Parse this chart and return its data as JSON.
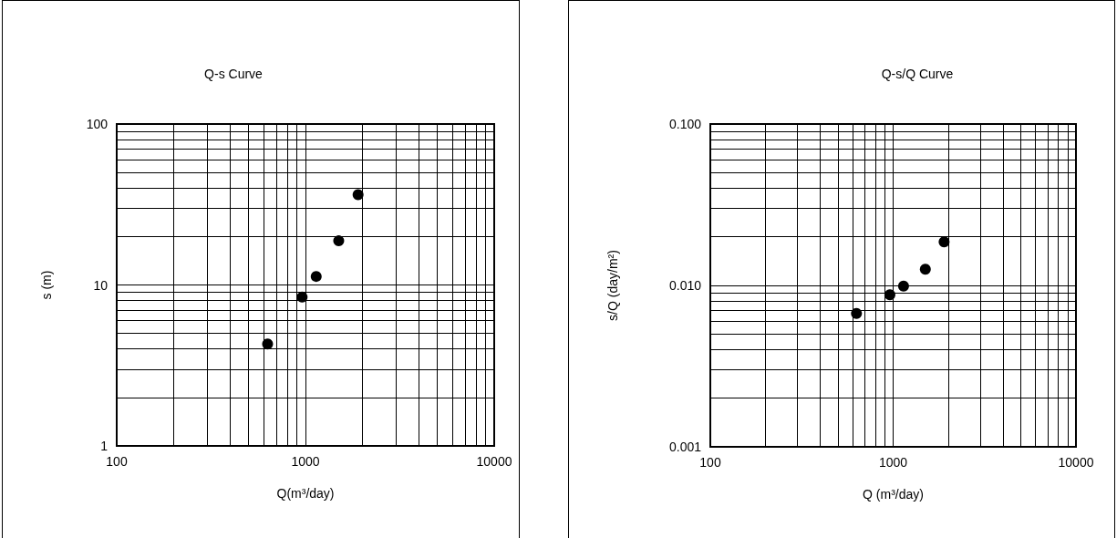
{
  "chart_data": [
    {
      "type": "scatter",
      "title": "Q-s Curve",
      "xlabel": "Q(m³/day)",
      "ylabel": "s (m)",
      "log": "xy",
      "grid": true,
      "marker": "circle",
      "x": [
        630,
        960,
        1140,
        1500,
        1900
      ],
      "series": [
        {
          "color": "#000000",
          "values": [
            4.3,
            8.4,
            11.3,
            18.8,
            36.4
          ]
        }
      ],
      "xlim": [
        100,
        10000
      ],
      "xticks": [
        100,
        {
          "value": 200,
          "label": null
        },
        {
          "value": 300,
          "label": null
        },
        {
          "value": 400,
          "label": null
        },
        {
          "value": 500,
          "label": null
        },
        {
          "value": 600,
          "label": null
        },
        {
          "value": 700,
          "label": null
        },
        {
          "value": 800,
          "label": null
        },
        {
          "value": 900,
          "label": null
        },
        1000,
        {
          "value": 2000,
          "label": null
        },
        {
          "value": 3000,
          "label": null
        },
        {
          "value": 4000,
          "label": null
        },
        {
          "value": 5000,
          "label": null
        },
        {
          "value": 6000,
          "label": null
        },
        {
          "value": 7000,
          "label": null
        },
        {
          "value": 8000,
          "label": null
        },
        {
          "value": 9000,
          "label": null
        },
        10000
      ],
      "ylim": [
        1,
        100
      ],
      "yticks": [
        1,
        {
          "value": 2,
          "label": null
        },
        {
          "value": 3,
          "label": null
        },
        {
          "value": 4,
          "label": null
        },
        {
          "value": 5,
          "label": null
        },
        {
          "value": 6,
          "label": null
        },
        {
          "value": 7,
          "label": null
        },
        {
          "value": 8,
          "label": null
        },
        {
          "value": 9,
          "label": null
        },
        10,
        {
          "value": 20,
          "label": null
        },
        {
          "value": 30,
          "label": null
        },
        {
          "value": 40,
          "label": null
        },
        {
          "value": 50,
          "label": null
        },
        {
          "value": 60,
          "label": null
        },
        {
          "value": 70,
          "label": null
        },
        {
          "value": 80,
          "label": null
        },
        {
          "value": 90,
          "label": null
        },
        100
      ]
    },
    {
      "type": "scatter",
      "title": "Q-s/Q Curve",
      "xlabel": "Q (m³/day)",
      "ylabel": "s/Q (day/m²)",
      "log": "xy",
      "grid": true,
      "marker": "circle",
      "x": [
        630,
        960,
        1140,
        1500,
        1900
      ],
      "series": [
        {
          "color": "#000000",
          "values": [
            0.0067,
            0.00875,
            0.0099,
            0.0126,
            0.0186
          ]
        }
      ],
      "xlim": [
        100,
        10000
      ],
      "xticks": [
        100,
        {
          "value": 200,
          "label": null
        },
        {
          "value": 300,
          "label": null
        },
        {
          "value": 400,
          "label": null
        },
        {
          "value": 500,
          "label": null
        },
        {
          "value": 600,
          "label": null
        },
        {
          "value": 700,
          "label": null
        },
        {
          "value": 800,
          "label": null
        },
        {
          "value": 900,
          "label": null
        },
        1000,
        {
          "value": 2000,
          "label": null
        },
        {
          "value": 3000,
          "label": null
        },
        {
          "value": 4000,
          "label": null
        },
        {
          "value": 5000,
          "label": null
        },
        {
          "value": 6000,
          "label": null
        },
        {
          "value": 7000,
          "label": null
        },
        {
          "value": 8000,
          "label": null
        },
        {
          "value": 9000,
          "label": null
        },
        10000
      ],
      "ylim": [
        0.001,
        0.1
      ],
      "yticks": [
        {
          "value": 0.001,
          "label": "0.001"
        },
        {
          "value": 0.002,
          "label": null
        },
        {
          "value": 0.003,
          "label": null
        },
        {
          "value": 0.004,
          "label": null
        },
        {
          "value": 0.005,
          "label": null
        },
        {
          "value": 0.006,
          "label": null
        },
        {
          "value": 0.007,
          "label": null
        },
        {
          "value": 0.008,
          "label": null
        },
        {
          "value": 0.009,
          "label": null
        },
        {
          "value": 0.01,
          "label": "0.010"
        },
        {
          "value": 0.02,
          "label": null
        },
        {
          "value": 0.03,
          "label": null
        },
        {
          "value": 0.04,
          "label": null
        },
        {
          "value": 0.05,
          "label": null
        },
        {
          "value": 0.06,
          "label": null
        },
        {
          "value": 0.07,
          "label": null
        },
        {
          "value": 0.08,
          "label": null
        },
        {
          "value": 0.09,
          "label": null
        },
        {
          "value": 0.1,
          "label": "0.100"
        }
      ]
    }
  ]
}
